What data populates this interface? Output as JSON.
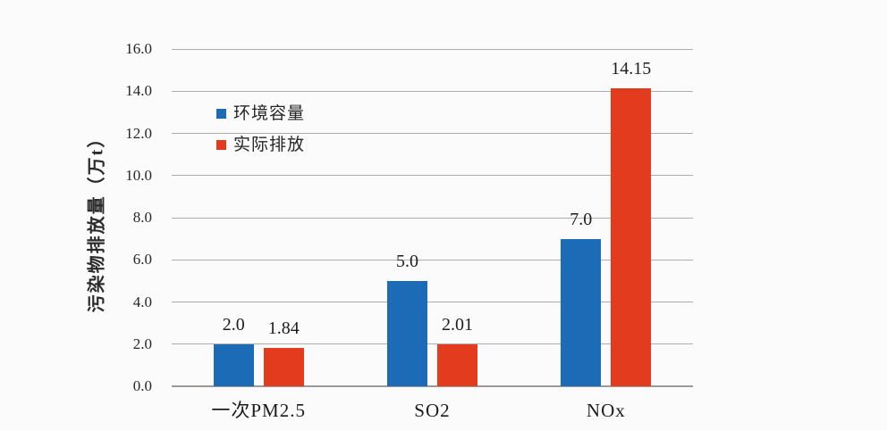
{
  "chart_data": {
    "type": "bar",
    "title": "",
    "xlabel": "",
    "ylabel": "污染物排放量（万t）",
    "categories": [
      "一次PM2.5",
      "SO2",
      "NOx"
    ],
    "series": [
      {
        "name": "环境容量",
        "color": "#1b6bb6",
        "values": [
          2.0,
          5.0,
          7.0
        ],
        "labels": [
          "2.0",
          "5.0",
          "7.0"
        ]
      },
      {
        "name": "实际排放",
        "color": "#e23b1e",
        "values": [
          1.84,
          2.01,
          14.15
        ],
        "labels": [
          "1.84",
          "2.01",
          "14.15"
        ]
      }
    ],
    "ylim": [
      0,
      16
    ],
    "ytick_step": 2,
    "ytick_labels": [
      "0.0",
      "2.0",
      "4.0",
      "6.0",
      "8.0",
      "10.0",
      "12.0",
      "14.0",
      "16.0"
    ],
    "grid": true,
    "legend_position": "upper-left-inside",
    "background_color": "#fcfbfc",
    "gridline_color": "#aeadab"
  }
}
